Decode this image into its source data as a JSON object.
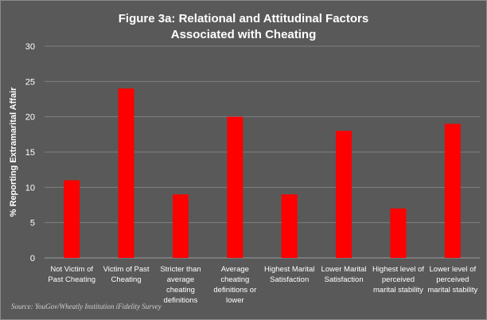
{
  "chart_data": {
    "type": "bar",
    "title": [
      "Figure 3a: Relational and Attitudinal Factors",
      "Associated with Cheating"
    ],
    "xlabel": "",
    "ylabel": "% Reporting Extramarital Affair",
    "ylim": [
      0,
      30
    ],
    "yticks": [
      0,
      5,
      10,
      15,
      20,
      25,
      30
    ],
    "grid": true,
    "bar_color": "#ff0000",
    "categories": [
      [
        "Not Victim of",
        "Past Cheating"
      ],
      [
        "Victim of Past",
        "Cheating"
      ],
      [
        "Stricter than",
        "average",
        "cheating",
        "definitions"
      ],
      [
        "Average",
        "cheating",
        "definitions or",
        "lower"
      ],
      [
        "Highest Marital",
        "Satisfaction"
      ],
      [
        "Lower Marital",
        "Satisfaction"
      ],
      [
        "Highest level of",
        "perceived",
        "marital stability"
      ],
      [
        "Lower level of",
        "perceived",
        "marital stability"
      ]
    ],
    "values": [
      11,
      24,
      9,
      20,
      9,
      18,
      7,
      19
    ]
  },
  "source": "Source: YouGov/Wheatly Institution iFidelity Survey"
}
